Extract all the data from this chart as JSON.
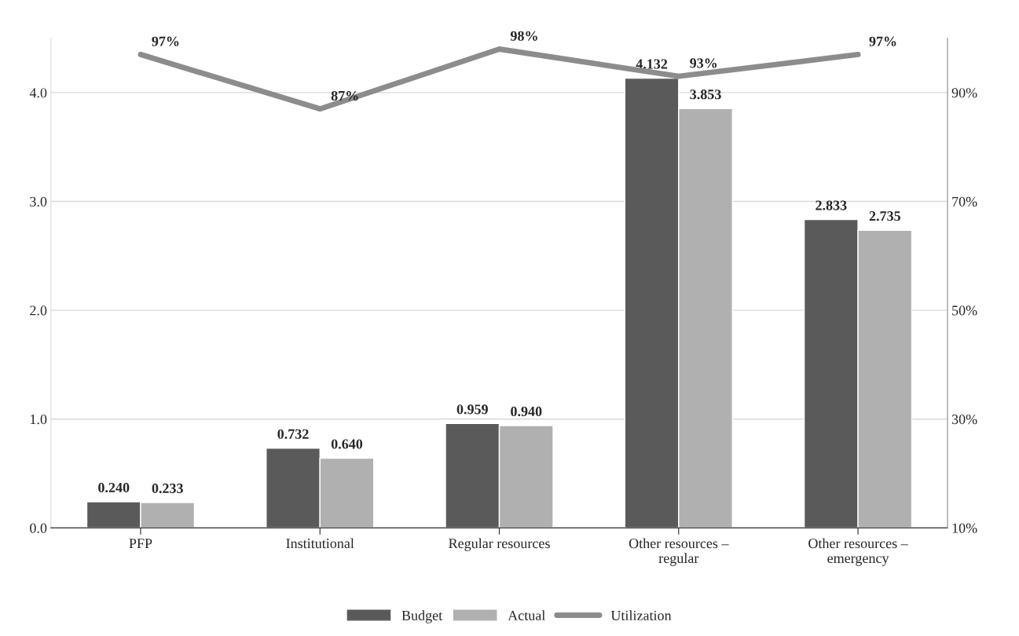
{
  "chart_data": {
    "type": "bar",
    "categories": [
      "PFP",
      "Institutional",
      "Regular resources",
      "Other resources –\nregular",
      "Other resources –\nemergency"
    ],
    "series": [
      {
        "name": "Budget",
        "color": "#5a5a5a",
        "values": [
          0.24,
          0.732,
          0.959,
          4.132,
          2.833
        ],
        "value_labels": [
          "0.240",
          "0.732",
          "0.959",
          "4.132",
          "2.833"
        ]
      },
      {
        "name": "Actual",
        "color": "#b0b0b0",
        "values": [
          0.233,
          0.64,
          0.94,
          3.853,
          2.735
        ],
        "value_labels": [
          "0.233",
          "0.640",
          "0.940",
          "3.853",
          "2.735"
        ]
      },
      {
        "name": "Utilization",
        "type": "line",
        "axis": "y2",
        "color": "#8c8c8c",
        "values": [
          97,
          87,
          98,
          93,
          97
        ],
        "value_labels": [
          "97%",
          "87%",
          "98%",
          "93%",
          "97%"
        ]
      }
    ],
    "ylim": [
      0,
      4.5
    ],
    "yticks": [
      {
        "value": 0,
        "label": "0.0"
      },
      {
        "value": 1,
        "label": "1.0"
      },
      {
        "value": 2,
        "label": "2.0"
      },
      {
        "value": 3,
        "label": "3.0"
      },
      {
        "value": 4,
        "label": "4.0"
      }
    ],
    "y2lim": [
      10,
      100
    ],
    "y2ticks": [
      {
        "value": 10,
        "label": "10%"
      },
      {
        "value": 30,
        "label": "30%"
      },
      {
        "value": 50,
        "label": "50%"
      },
      {
        "value": 70,
        "label": "70%"
      },
      {
        "value": 90,
        "label": "90%"
      }
    ],
    "grid": "y",
    "legend": "bottom",
    "marker": "none",
    "line_style": "solid"
  }
}
